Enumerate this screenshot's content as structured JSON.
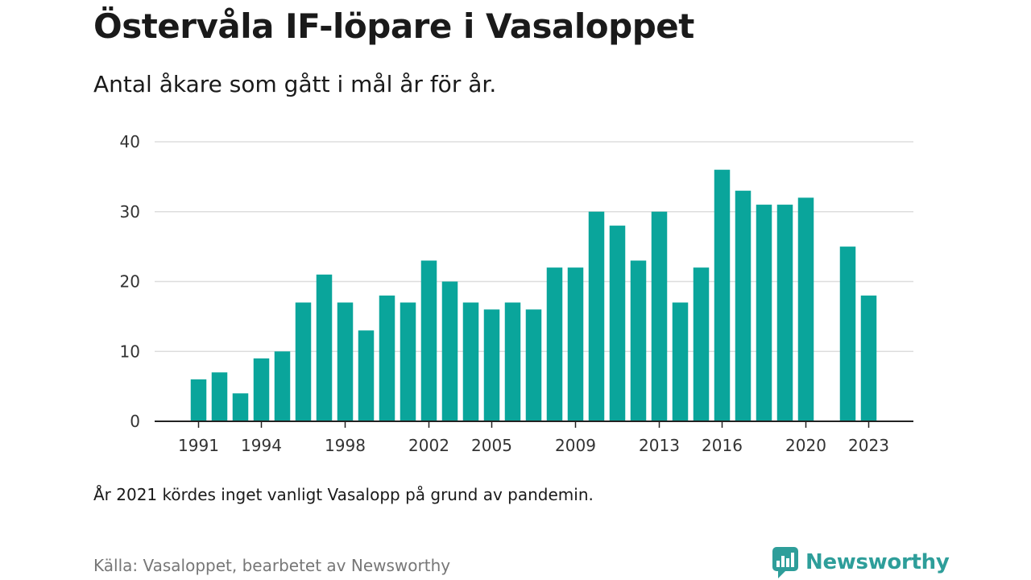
{
  "header": {
    "title": "Östervåla IF-löpare i Vasaloppet",
    "subtitle": "Antal åkare som gått i mål år för år."
  },
  "note": "År 2021 kördes inget vanligt Vasalopp på grund av pandemin.",
  "source": "Källa: Vasaloppet, bearbetet av Newsworthy",
  "brand": {
    "name": "Newsworthy",
    "icon": "newsworthy-logo-icon",
    "color": "#2e9e9a"
  },
  "chart_data": {
    "type": "bar",
    "bar_color": "#0aa59b",
    "x": [
      1991,
      1992,
      1993,
      1994,
      1995,
      1996,
      1997,
      1998,
      1999,
      2000,
      2001,
      2002,
      2003,
      2004,
      2005,
      2006,
      2007,
      2008,
      2009,
      2010,
      2011,
      2012,
      2013,
      2014,
      2015,
      2016,
      2017,
      2018,
      2019,
      2020,
      2021,
      2022,
      2023
    ],
    "values": [
      6,
      7,
      4,
      9,
      10,
      17,
      21,
      17,
      13,
      18,
      17,
      23,
      20,
      17,
      16,
      17,
      16,
      22,
      22,
      30,
      28,
      23,
      30,
      17,
      22,
      36,
      33,
      31,
      31,
      32,
      null,
      25,
      18
    ],
    "x_tick_labels": [
      "1991",
      "1994",
      "1998",
      "2002",
      "2005",
      "2009",
      "2013",
      "2016",
      "2020",
      "2023"
    ],
    "y_ticks": [
      0,
      10,
      20,
      30,
      40
    ],
    "ylim": [
      0,
      40
    ],
    "grid": true,
    "xlabel": "",
    "ylabel": ""
  }
}
